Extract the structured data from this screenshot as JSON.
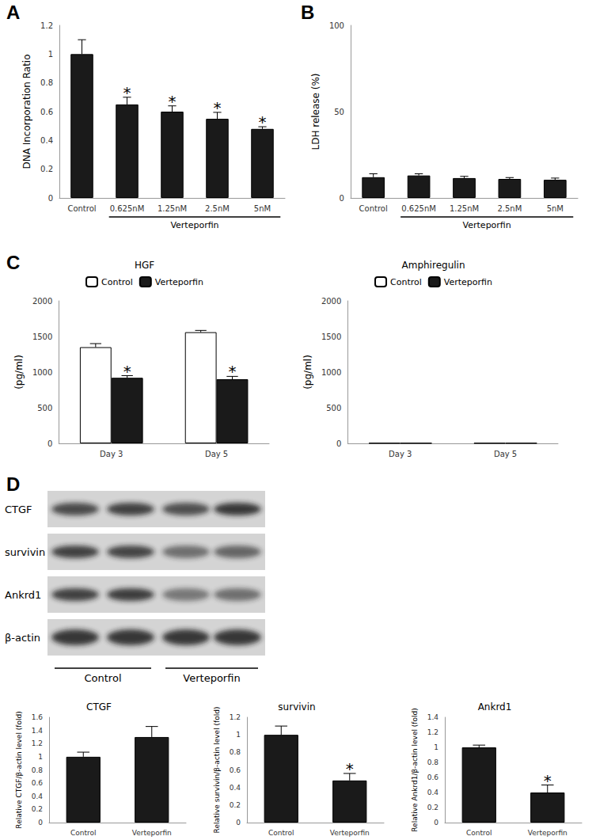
{
  "panel_labels": [
    "A",
    "B",
    "C",
    "D"
  ],
  "chart_data": [
    {
      "type": "bar",
      "categories": [
        "Control",
        "0.625nM",
        "1.25nM",
        "2.5nM",
        "5nM"
      ],
      "values": [
        1,
        0.65,
        0.6,
        0.55,
        0.48
      ],
      "errors": [
        0.1,
        0.05,
        0.04,
        0.045,
        0.015
      ],
      "annotations": [
        null,
        "*",
        "*",
        "*",
        "*"
      ],
      "color": "#1a1a1a",
      "ylabel": "DNA Incorporation Ratio",
      "xlabel": "Verteporfin",
      "ylim": [
        0,
        1.2
      ],
      "yticks": [
        0,
        0.2,
        0.4,
        0.6,
        0.8,
        1,
        1.2
      ],
      "grid": false
    },
    {
      "type": "bar",
      "categories": [
        "Control",
        "0.625nM",
        "1.25nM",
        "2.5nM",
        "5nM"
      ],
      "values": [
        12,
        13,
        11.5,
        11,
        10.5
      ],
      "errors": [
        2,
        1,
        1,
        0.8,
        1
      ],
      "color": "#1a1a1a",
      "ylabel": "LDH release (%)",
      "xlabel": "Verteporfin",
      "ylim": [
        0,
        100
      ],
      "yticks": [
        0,
        50,
        100
      ],
      "grid": false
    },
    {
      "type": "bar",
      "title": "HGF",
      "categories": [
        "Day 3",
        "Day 5"
      ],
      "series": [
        {
          "name": "Control",
          "color": "#ffffff",
          "values": [
            1350,
            1560
          ],
          "errors": [
            50,
            25
          ]
        },
        {
          "name": "Verteporfin",
          "color": "#1a1a1a",
          "values": [
            920,
            900
          ],
          "errors": [
            30,
            40
          ],
          "annotations": [
            "*",
            "*"
          ]
        }
      ],
      "ylabel": "(pg/ml)",
      "ylim": [
        0,
        2000
      ],
      "yticks": [
        0,
        500,
        1000,
        1500,
        2000
      ],
      "legend": "top",
      "grid": false
    },
    {
      "type": "bar",
      "title": "Amphiregulin",
      "categories": [
        "Day 3",
        "Day 5"
      ],
      "series": [
        {
          "name": "Control",
          "color": "#ffffff",
          "values": [
            4,
            4
          ]
        },
        {
          "name": "Verteporfin",
          "color": "#1a1a1a",
          "values": [
            4,
            4
          ]
        }
      ],
      "ylabel": "(pg/ml)",
      "ylim": [
        0,
        2000
      ],
      "yticks": [
        0,
        500,
        1000,
        1500,
        2000
      ],
      "legend": "top",
      "grid": false
    },
    {
      "type": "bar",
      "title": "CTGF",
      "categories": [
        "Control",
        "Verteporfin"
      ],
      "values": [
        1,
        1.3
      ],
      "errors": [
        0.07,
        0.16
      ],
      "color": "#1a1a1a",
      "ylabel": "Relative CTGF/β-actin level (fold)",
      "ylim": [
        0,
        1.6
      ],
      "yticks": [
        0,
        0.2,
        0.4,
        0.6,
        0.8,
        1,
        1.2,
        1.4,
        1.6
      ],
      "grid": false
    },
    {
      "type": "bar",
      "title": "survivin",
      "categories": [
        "Control",
        "Verteporfin"
      ],
      "values": [
        1,
        0.48
      ],
      "errors": [
        0.1,
        0.08
      ],
      "annotations": [
        null,
        "*"
      ],
      "color": "#1a1a1a",
      "ylabel": "Relative survivin/β-actin level (fold)",
      "ylim": [
        0,
        1.2
      ],
      "yticks": [
        0,
        0.2,
        0.4,
        0.6,
        0.8,
        1,
        1.2
      ],
      "grid": false
    },
    {
      "type": "bar",
      "title": "Ankrd1",
      "categories": [
        "Control",
        "Verteporfin"
      ],
      "values": [
        1,
        0.4
      ],
      "errors": [
        0.03,
        0.1
      ],
      "annotations": [
        null,
        "*"
      ],
      "color": "#1a1a1a",
      "ylabel": "Relative Ankrd1/β-actin level (fold)",
      "ylim": [
        0,
        1.4
      ],
      "yticks": [
        0,
        0.2,
        0.4,
        0.6,
        0.8,
        1,
        1.2,
        1.4
      ],
      "grid": false
    }
  ],
  "blot": {
    "rows": [
      "CTGF",
      "survivin",
      "Ankrd1",
      "β-actin"
    ],
    "groups": [
      "Control",
      "Verteporfin"
    ]
  }
}
